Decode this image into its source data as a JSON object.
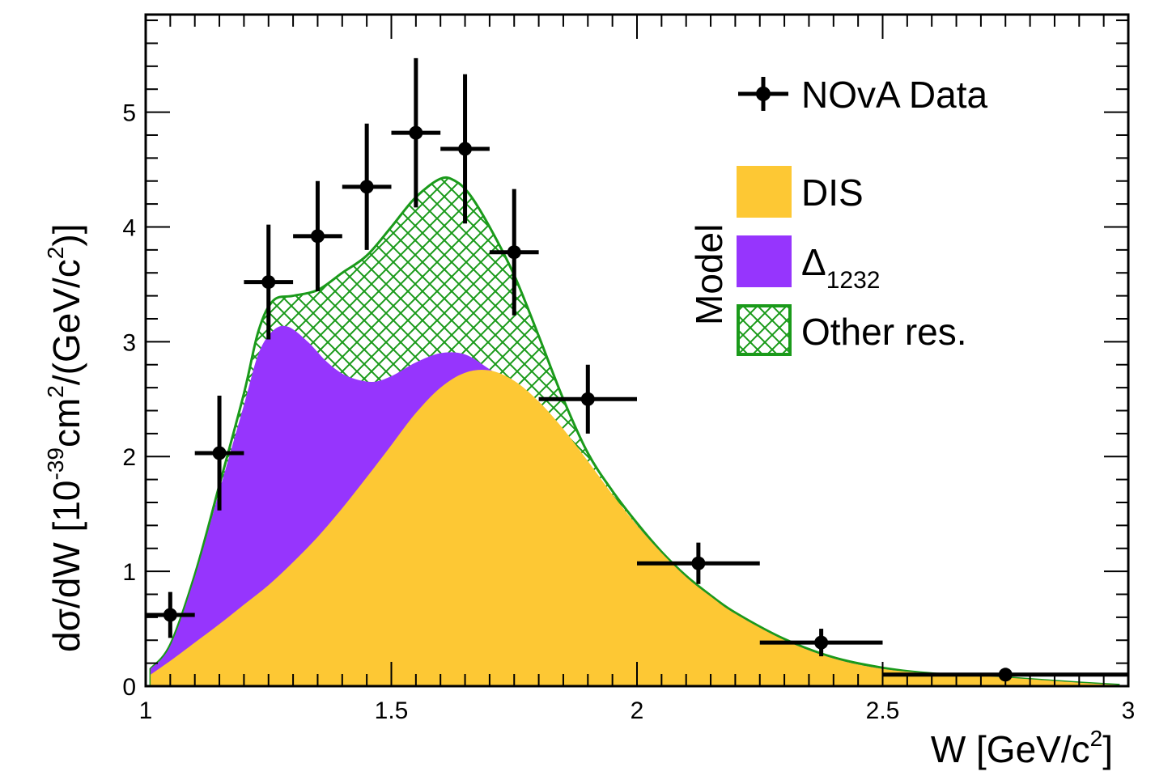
{
  "chart_data": {
    "type": "area",
    "xlabel": "W [GeV/c",
    "xlabel_sup": "2",
    "xlabel_end": "]",
    "ylabel": "dσ/dW [10",
    "ylabel_sup1": "-39",
    "ylabel_mid": "cm",
    "ylabel_sup2": "2",
    "ylabel_mid2": "/(GeV/c",
    "ylabel_sup3": "2",
    "ylabel_end": ")]",
    "xlim": [
      1,
      3
    ],
    "ylim": [
      0,
      5.85
    ],
    "xticks": [
      {
        "value": 1,
        "label": "1"
      },
      {
        "value": 1.5,
        "label": "1.5"
      },
      {
        "value": 2,
        "label": "2"
      },
      {
        "value": 2.5,
        "label": "2.5"
      },
      {
        "value": 3,
        "label": "3"
      }
    ],
    "yticks": [
      {
        "value": 0,
        "label": "0"
      },
      {
        "value": 1,
        "label": "1"
      },
      {
        "value": 2,
        "label": "2"
      },
      {
        "value": 3,
        "label": "3"
      },
      {
        "value": 4,
        "label": "4"
      },
      {
        "value": 5,
        "label": "5"
      }
    ],
    "legend_title": "Model",
    "legend_placement": "top-right",
    "colors": {
      "dis": "#fdc834",
      "delta": "#9635fd",
      "other": "#1a9a1a",
      "data": "#000000"
    },
    "stacked_series": [
      {
        "name": "DIS",
        "x": [
          1.01,
          1.05,
          1.1,
          1.15,
          1.2,
          1.25,
          1.3,
          1.35,
          1.4,
          1.45,
          1.5,
          1.55,
          1.6,
          1.65,
          1.7,
          1.75,
          1.8,
          1.85,
          1.9,
          1.95,
          2.0,
          2.05,
          2.1,
          2.15,
          2.2,
          2.3,
          2.4,
          2.5,
          2.6,
          2.7,
          2.8,
          2.9,
          2.98
        ],
        "y": [
          0.1,
          0.22,
          0.38,
          0.54,
          0.71,
          0.88,
          1.08,
          1.3,
          1.55,
          1.82,
          2.1,
          2.38,
          2.6,
          2.73,
          2.75,
          2.66,
          2.48,
          2.24,
          1.96,
          1.67,
          1.4,
          1.16,
          0.95,
          0.78,
          0.63,
          0.4,
          0.24,
          0.15,
          0.11,
          0.09,
          0.06,
          0.03,
          0.01
        ]
      },
      {
        "name": "Δ1232",
        "x": [
          1.01,
          1.05,
          1.1,
          1.15,
          1.2,
          1.23,
          1.26,
          1.29,
          1.33,
          1.37,
          1.41,
          1.46,
          1.5,
          1.55,
          1.6,
          1.65,
          1.7,
          1.75,
          1.8,
          1.85,
          1.9,
          1.95,
          2.0,
          2.05,
          2.1,
          2.15,
          2.2,
          2.3,
          2.4,
          2.5,
          2.6,
          2.7,
          2.8,
          2.9,
          2.98
        ],
        "y": [
          0.15,
          0.35,
          0.95,
          1.7,
          2.45,
          2.9,
          3.1,
          3.13,
          3.0,
          2.82,
          2.7,
          2.65,
          2.7,
          2.82,
          2.9,
          2.89,
          2.76,
          2.62,
          2.44,
          2.21,
          1.94,
          1.66,
          1.4,
          1.16,
          0.95,
          0.78,
          0.63,
          0.4,
          0.24,
          0.15,
          0.11,
          0.09,
          0.06,
          0.03,
          0.01
        ]
      },
      {
        "name": "Other res.",
        "x": [
          1.01,
          1.05,
          1.1,
          1.15,
          1.2,
          1.23,
          1.26,
          1.3,
          1.35,
          1.4,
          1.45,
          1.5,
          1.55,
          1.6,
          1.63,
          1.66,
          1.7,
          1.75,
          1.8,
          1.85,
          1.9,
          1.95,
          2.0,
          2.05,
          2.1,
          2.15,
          2.2,
          2.3,
          2.4,
          2.5,
          2.6,
          2.7,
          2.8,
          2.9,
          2.98
        ],
        "y": [
          0.15,
          0.36,
          0.97,
          1.75,
          2.55,
          3.1,
          3.36,
          3.4,
          3.45,
          3.6,
          3.75,
          4.0,
          4.26,
          4.42,
          4.4,
          4.28,
          4.0,
          3.58,
          3.05,
          2.5,
          2.03,
          1.7,
          1.42,
          1.17,
          0.96,
          0.79,
          0.64,
          0.41,
          0.25,
          0.16,
          0.11,
          0.09,
          0.06,
          0.03,
          0.01
        ]
      }
    ],
    "data_points": {
      "name": "NOvA Data",
      "points": [
        {
          "x": 1.05,
          "y": 0.62,
          "xerr": 0.05,
          "yerr_low": 0.2,
          "yerr_high": 0.2
        },
        {
          "x": 1.15,
          "y": 2.03,
          "xerr": 0.05,
          "yerr_low": 0.5,
          "yerr_high": 0.5
        },
        {
          "x": 1.25,
          "y": 3.52,
          "xerr": 0.05,
          "yerr_low": 0.5,
          "yerr_high": 0.5
        },
        {
          "x": 1.35,
          "y": 3.92,
          "xerr": 0.05,
          "yerr_low": 0.48,
          "yerr_high": 0.48
        },
        {
          "x": 1.45,
          "y": 4.35,
          "xerr": 0.05,
          "yerr_low": 0.55,
          "yerr_high": 0.55
        },
        {
          "x": 1.55,
          "y": 4.82,
          "xerr": 0.05,
          "yerr_low": 0.65,
          "yerr_high": 0.65
        },
        {
          "x": 1.65,
          "y": 4.68,
          "xerr": 0.05,
          "yerr_low": 0.65,
          "yerr_high": 0.65
        },
        {
          "x": 1.75,
          "y": 3.78,
          "xerr": 0.05,
          "yerr_low": 0.55,
          "yerr_high": 0.55
        },
        {
          "x": 1.9,
          "y": 2.5,
          "xerr": 0.1,
          "yerr_low": 0.3,
          "yerr_high": 0.3
        },
        {
          "x": 2.125,
          "y": 1.07,
          "xerr": 0.125,
          "yerr_low": 0.18,
          "yerr_high": 0.18
        },
        {
          "x": 2.375,
          "y": 0.38,
          "xerr": 0.125,
          "yerr_low": 0.12,
          "yerr_high": 0.12
        },
        {
          "x": 2.75,
          "y": 0.1,
          "xerr": 0.25,
          "yerr_low": 0.05,
          "yerr_high": 0.05
        }
      ]
    },
    "legend": [
      {
        "key": "data",
        "label": "NOvA Data"
      },
      {
        "key": "dis",
        "label": "DIS"
      },
      {
        "key": "delta",
        "label": "Δ",
        "label_sub": "1232"
      },
      {
        "key": "other",
        "label": "Other res."
      }
    ]
  }
}
